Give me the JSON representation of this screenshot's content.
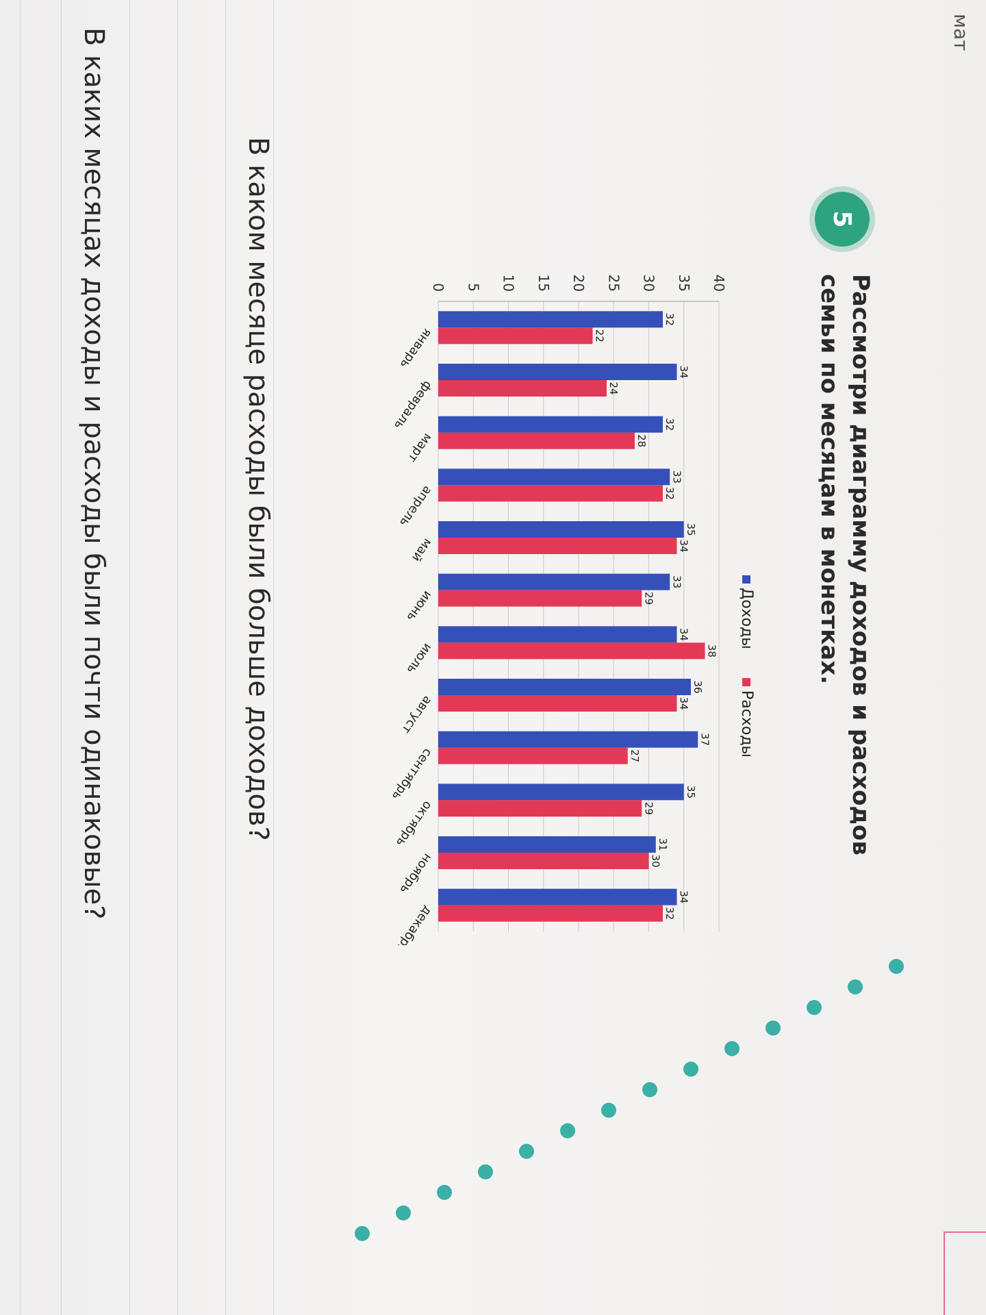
{
  "edge_label": "мат",
  "badge_number": "5",
  "task_title": "Рассмотри диаграмму доходов и расходов семьи по месяцам в монетках.",
  "question_1": "В каком месяце расходы были больше доходов?",
  "question_2": "В каких месяцах доходы и расходы были почти одинаковые?",
  "colors": {
    "income": "#3550b8",
    "expense": "#e23a56",
    "badge": "#2ea37f",
    "dots": "#3ab0a6"
  },
  "chart_data": {
    "type": "bar",
    "categories": [
      "январь",
      "февраль",
      "март",
      "апрель",
      "май",
      "июнь",
      "июль",
      "август",
      "сентябрь",
      "октябрь",
      "ноябрь",
      "декабрь"
    ],
    "series": [
      {
        "name": "Доходы",
        "color": "#3550b8",
        "values": [
          32,
          34,
          32,
          33,
          35,
          33,
          34,
          36,
          37,
          35,
          31,
          34
        ]
      },
      {
        "name": "Расходы",
        "color": "#e23a56",
        "values": [
          22,
          24,
          28,
          32,
          34,
          29,
          38,
          34,
          27,
          29,
          30,
          32
        ]
      }
    ],
    "yticks": [
      0,
      5,
      10,
      15,
      20,
      25,
      30,
      35,
      40
    ],
    "ylim": [
      0,
      40
    ],
    "grid": true,
    "legend": "top"
  }
}
